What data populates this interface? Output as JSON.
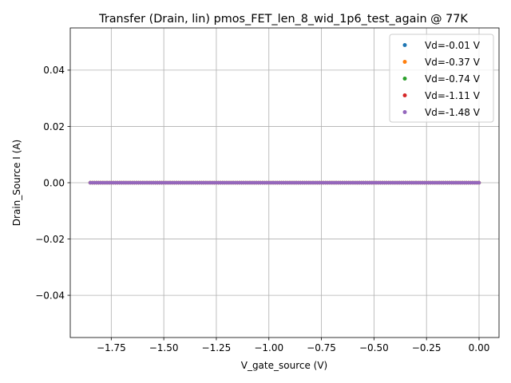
{
  "chart_data": {
    "type": "scatter",
    "title": "Transfer (Drain, lin) pmos_FET_len_8_wid_1p6_test_again @ 77K",
    "xlabel": "V_gate_source (V)",
    "ylabel": "Drain_Source I (A)",
    "xlim": [
      -1.945,
      0.095
    ],
    "ylim": [
      -0.055,
      0.055
    ],
    "x_ticks": [
      -1.75,
      -1.5,
      -1.25,
      -1.0,
      -0.75,
      -0.5,
      -0.25,
      0.0
    ],
    "x_tick_labels": [
      "−1.75",
      "−1.50",
      "−1.25",
      "−1.00",
      "−0.75",
      "−0.50",
      "−0.25",
      "0.00"
    ],
    "y_ticks": [
      -0.04,
      -0.02,
      0.0,
      0.02,
      0.04
    ],
    "y_tick_labels": [
      "−0.04",
      "−0.02",
      "0.00",
      "0.02",
      "0.04"
    ],
    "grid": true,
    "legend_position": "top-right",
    "x_range": [
      -1.85,
      0.0
    ],
    "x_step": 0.01,
    "y_value_all_points": 0.0,
    "series": [
      {
        "name": "Vd=-0.01 V",
        "color": "#1f77b4",
        "y": 0.0
      },
      {
        "name": "Vd=-0.37 V",
        "color": "#ff7f0e",
        "y": 0.0
      },
      {
        "name": "Vd=-0.74 V",
        "color": "#2ca02c",
        "y": 0.0
      },
      {
        "name": "Vd=-1.11 V",
        "color": "#d62728",
        "y": 0.0
      },
      {
        "name": "Vd=-1.48 V",
        "color": "#9467bd",
        "y": 0.0
      }
    ]
  }
}
